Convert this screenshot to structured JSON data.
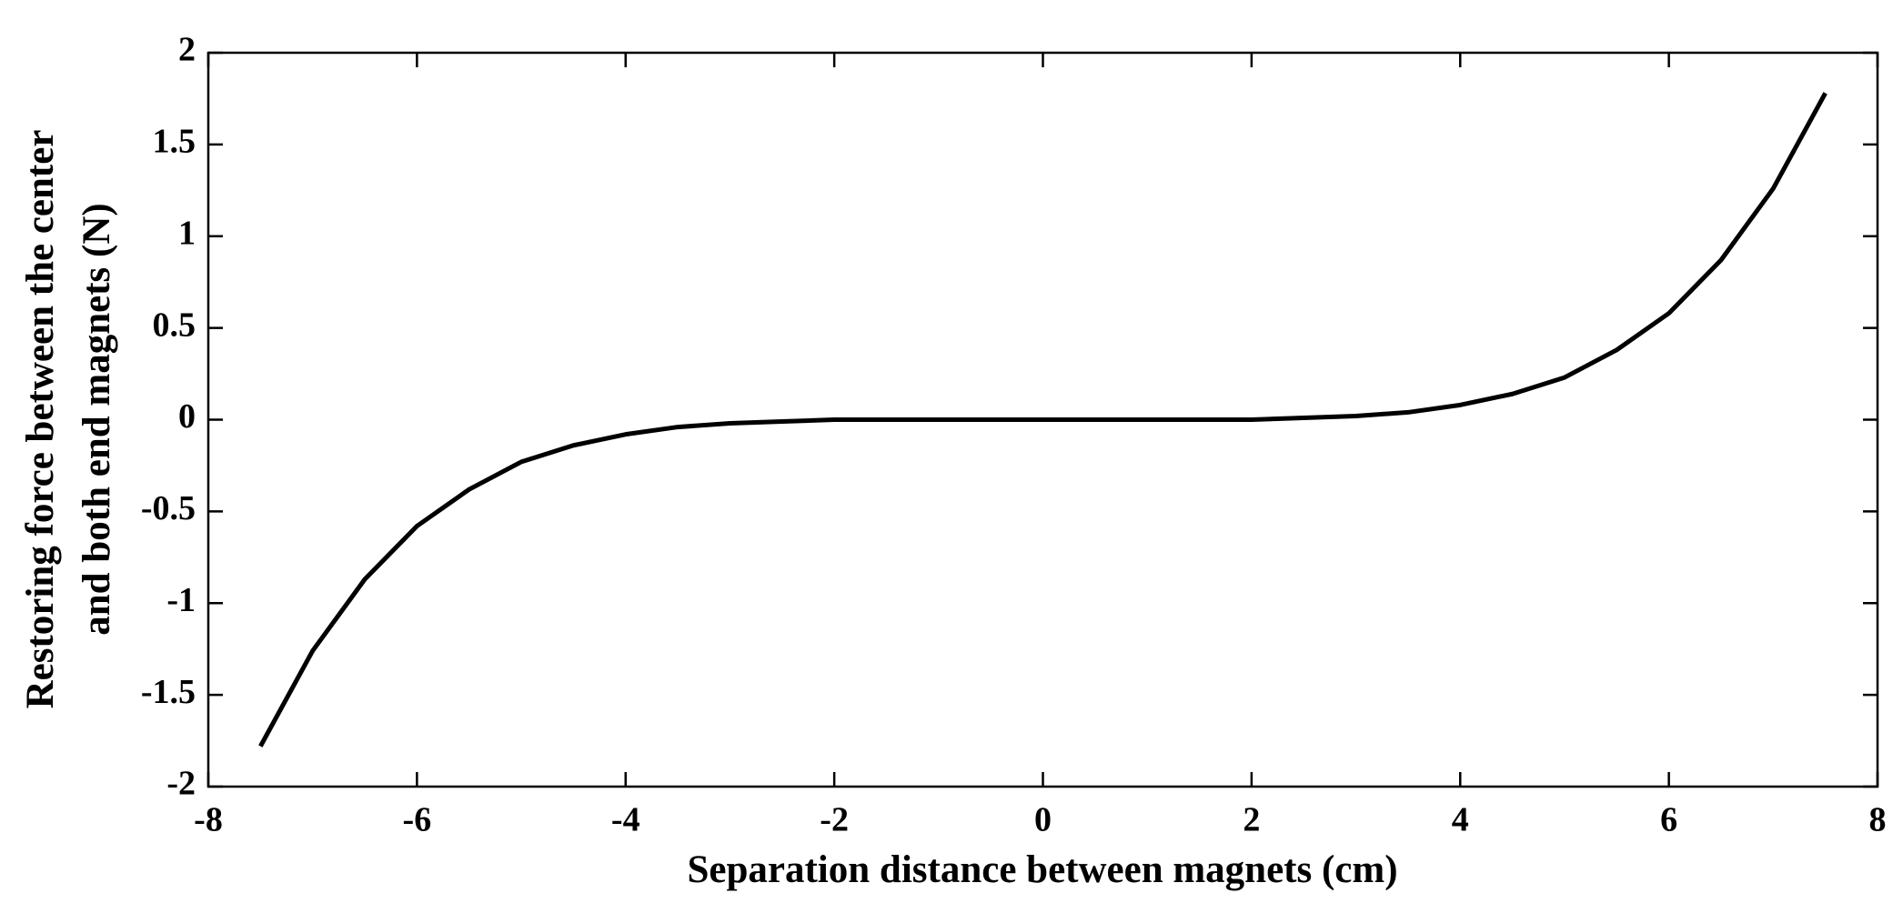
{
  "chart_data": {
    "type": "line",
    "xlabel": "Separation distance between magnets (cm)",
    "ylabel": [
      "Restoring force between the center",
      "and both end magnets (N)"
    ],
    "x": [
      -7.5,
      -7,
      -6.5,
      -6,
      -5.5,
      -5,
      -4.5,
      -4,
      -3.5,
      -3,
      -2.5,
      -2,
      -1.5,
      -1,
      -0.5,
      0,
      0.5,
      1,
      1.5,
      2,
      2.5,
      3,
      3.5,
      4,
      4.5,
      5,
      5.5,
      6,
      6.5,
      7,
      7.5
    ],
    "series": [
      {
        "color": "#000000",
        "values": [
          -1.78,
          -1.26,
          -0.87,
          -0.58,
          -0.38,
          -0.23,
          -0.14,
          -0.08,
          -0.04,
          -0.02,
          -0.01,
          0,
          0,
          0,
          0,
          0,
          0,
          0,
          0,
          0,
          0.01,
          0.02,
          0.04,
          0.08,
          0.14,
          0.23,
          0.38,
          0.58,
          0.87,
          1.26,
          1.78
        ]
      }
    ],
    "xlim": [
      -8,
      8
    ],
    "xticks": [
      -8,
      -6,
      -4,
      -2,
      0,
      2,
      4,
      6,
      8
    ],
    "ylim": [
      -2,
      2
    ],
    "yticks": [
      -2,
      -1.5,
      -1,
      -0.5,
      0,
      0.5,
      1,
      1.5,
      2
    ],
    "grid": false
  }
}
